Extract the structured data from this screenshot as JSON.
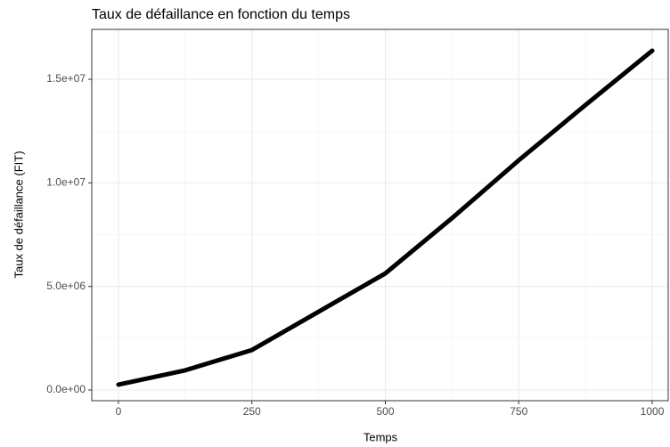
{
  "chart_data": {
    "type": "line",
    "title": "Taux de défaillance en fonction du temps",
    "xlabel": "Temps",
    "ylabel": "Taux de défaillance (FIT)",
    "x": [
      0,
      125,
      250,
      375,
      500,
      625,
      750,
      875,
      1000
    ],
    "series": [
      {
        "color": "#000000",
        "values": [
          260000,
          950000,
          1930000,
          3780000,
          5630000,
          8300000,
          11090000,
          13760000,
          16380000
        ]
      }
    ],
    "xlim": [
      -50,
      1030
    ],
    "ylim": [
      -516000,
      17410000
    ],
    "xticks": [
      0,
      250,
      500,
      750,
      1000
    ],
    "xminor": [
      125,
      375,
      625,
      875
    ],
    "yticks": [
      {
        "value": 0,
        "label": "0.0e+00"
      },
      {
        "value": 5000000,
        "label": "5.0e+06"
      },
      {
        "value": 10000000,
        "label": "1.0e+07"
      },
      {
        "value": 15000000,
        "label": "1.5e+07"
      }
    ],
    "yminor": [
      2500000,
      7500000,
      12500000
    ],
    "grid": true
  }
}
